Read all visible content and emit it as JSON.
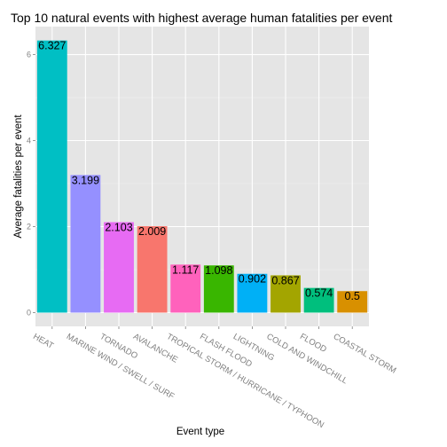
{
  "chart_data": {
    "type": "bar",
    "title": "Top 10 natural events with highest average human fatalities per event",
    "xlabel": "Event type",
    "ylabel": "Average fatalities per event",
    "categories": [
      "HEAT",
      "MARINE WIND / SWELL / SURF",
      "TORNADO",
      "AVALANCHE",
      "TROPICAL STORM / HURRICANE / TYPHOON",
      "FLASH FLOOD",
      "LIGHTNING",
      "COLD AND WINDCHILL",
      "FLOOD",
      "COASTAL STORM"
    ],
    "values": [
      6.327,
      3.199,
      2.103,
      2.009,
      1.117,
      1.098,
      0.902,
      0.867,
      0.574,
      0.5
    ],
    "value_labels": [
      "6.327",
      "3.199",
      "2.103",
      "2.009",
      "1.117",
      "1.098",
      "0.902",
      "0.867",
      "0.574",
      "0.5"
    ],
    "colors": [
      "#00BFC4",
      "#9590FF",
      "#E76BF3",
      "#F8766D",
      "#FF62BC",
      "#39B600",
      "#00B0F6",
      "#A3A500",
      "#00BF7D",
      "#D89000"
    ],
    "yticks": [
      "0",
      "2",
      "4",
      "6"
    ],
    "ylim": [
      -0.32,
      6.65
    ],
    "grid": true,
    "legend": "none",
    "background": "#E5E5E5",
    "gridline_color": "#FFFFFF"
  }
}
